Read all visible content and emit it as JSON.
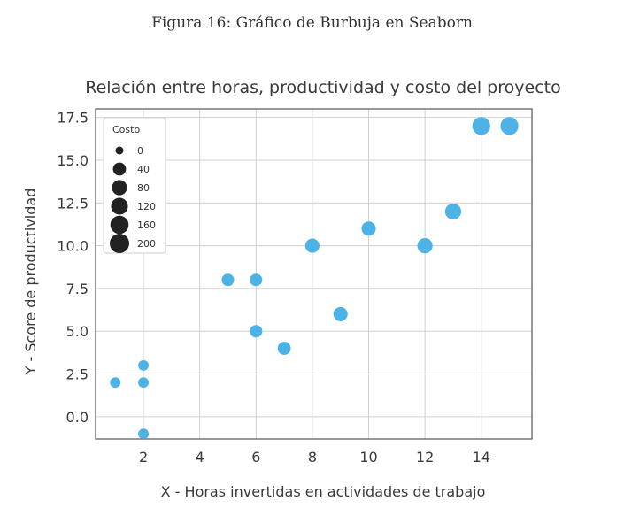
{
  "figure_caption": "Figura 16: Gráfico de Burbuja en Seaborn",
  "chart_data": {
    "type": "scatter",
    "title": "Relación entre horas, productividad y costo del proyecto",
    "xlabel": "X - Horas invertidas en actividades de trabajo",
    "ylabel": "Y - Score de productividad",
    "xlim": [
      0.3,
      15.8
    ],
    "ylim": [
      -1.3,
      18.0
    ],
    "xticks": [
      2,
      4,
      6,
      8,
      10,
      12,
      14
    ],
    "xtick_labels": [
      "2",
      "4",
      "6",
      "8",
      "10",
      "12",
      "14"
    ],
    "yticks": [
      0.0,
      2.5,
      5.0,
      7.5,
      10.0,
      12.5,
      15.0,
      17.5
    ],
    "ytick_labels": [
      "0.0",
      "2.5",
      "5.0",
      "7.5",
      "10.0",
      "12.5",
      "15.0",
      "17.5"
    ],
    "grid": true,
    "color": "#4db3e6",
    "size_variable": "Costo",
    "legend": {
      "title": "Costo",
      "placement": "top-left",
      "sizes": [
        0,
        40,
        80,
        120,
        160,
        200
      ],
      "labels": [
        "0",
        "40",
        "80",
        "120",
        "160",
        "200"
      ],
      "color": "#222222"
    },
    "points": [
      {
        "x": 1,
        "y": 2,
        "costo": 10
      },
      {
        "x": 2,
        "y": 3,
        "costo": 10
      },
      {
        "x": 2,
        "y": 2,
        "costo": 10
      },
      {
        "x": 2,
        "y": -1,
        "costo": 10
      },
      {
        "x": 5,
        "y": 8,
        "costo": 30
      },
      {
        "x": 6,
        "y": 8,
        "costo": 30
      },
      {
        "x": 6,
        "y": 5,
        "costo": 30
      },
      {
        "x": 7,
        "y": 4,
        "costo": 40
      },
      {
        "x": 8,
        "y": 10,
        "costo": 60
      },
      {
        "x": 9,
        "y": 6,
        "costo": 60
      },
      {
        "x": 10,
        "y": 11,
        "costo": 60
      },
      {
        "x": 12,
        "y": 10,
        "costo": 80
      },
      {
        "x": 13,
        "y": 12,
        "costo": 100
      },
      {
        "x": 14,
        "y": 17,
        "costo": 150
      },
      {
        "x": 15,
        "y": 17,
        "costo": 150
      }
    ]
  }
}
